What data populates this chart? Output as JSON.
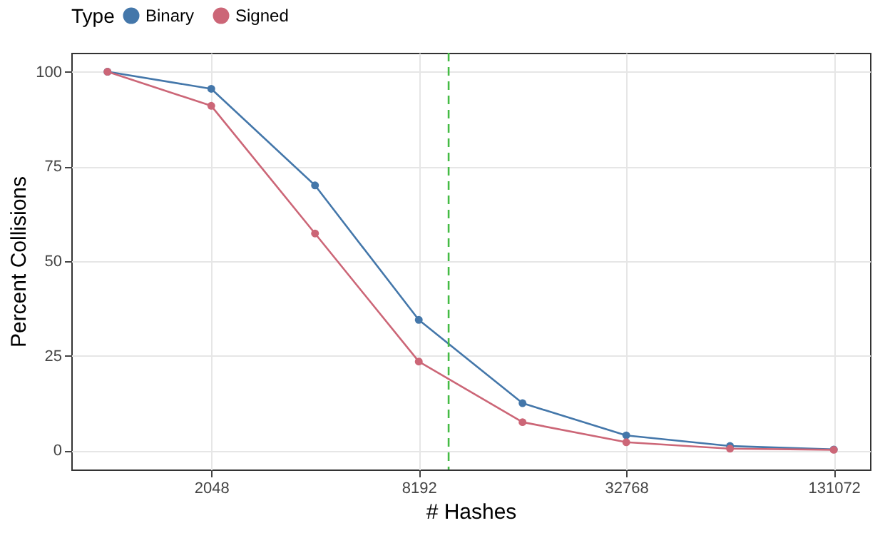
{
  "chart_data": {
    "type": "line",
    "xlabel": "# Hashes",
    "ylabel": "Percent Collisions",
    "legend_title": "Type",
    "x": [
      1024,
      2048,
      4096,
      8192,
      16384,
      32768,
      65536,
      131072
    ],
    "series": [
      {
        "name": "Binary",
        "color": "#4477aa",
        "values": [
          100,
          95.5,
          70,
          34.5,
          12.5,
          4,
          1.2,
          0.3
        ]
      },
      {
        "name": "Signed",
        "color": "#cc6677",
        "values": [
          100,
          91,
          57.3,
          23.5,
          7.5,
          2.2,
          0.5,
          0.2
        ]
      }
    ],
    "log": "x",
    "xlim": [
      804,
      167000
    ],
    "xticks": [
      2048,
      8192,
      32768,
      131072
    ],
    "ylim": [
      -5,
      105
    ],
    "yticks": [
      0,
      25,
      50,
      75,
      100
    ],
    "ref_lines": [
      {
        "axis": "x",
        "value": 10000,
        "color": "#44bb44",
        "line_style": "dashed"
      }
    ],
    "grid": true,
    "legend": "top",
    "marker": "circle",
    "line_style": "solid"
  }
}
